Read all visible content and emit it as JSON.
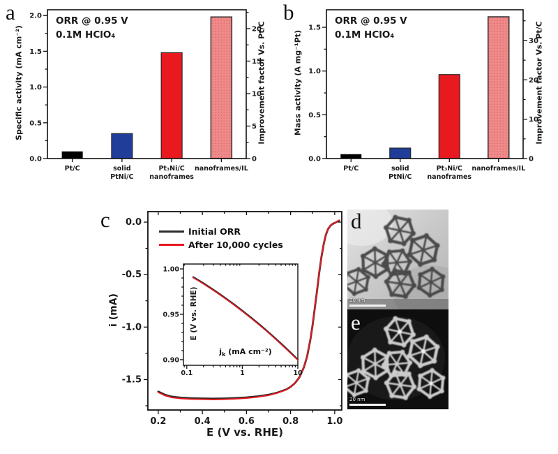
{
  "panels": {
    "a": "a",
    "b": "b",
    "c": "c",
    "d": "d",
    "e": "e"
  },
  "chart_data": [
    {
      "id": "a",
      "type": "bar",
      "title_lines": [
        "ORR @ 0.95 V",
        "0.1M HClO₄"
      ],
      "categories": [
        [
          "Pt/C"
        ],
        [
          "solid",
          "PtNi/C"
        ],
        [
          "Pt₃Ni/C",
          "nanoframes"
        ],
        [
          "nanoframes/IL"
        ]
      ],
      "values": [
        0.1,
        0.35,
        1.48,
        1.98
      ],
      "bar_colors": [
        "#000000",
        "#1f3d99",
        "#e8191f",
        "#ef8a8a"
      ],
      "hatch_last": true,
      "ylabel_left": "Specific activity (mA cm⁻²)",
      "ylabel_right": "Improvement factor Vs. Pt/C",
      "yticks_left": [
        "0.0",
        "0.5",
        "1.0",
        "1.5",
        "2.0"
      ],
      "yticks_right": [
        "0",
        "5",
        "10",
        "15",
        "20"
      ],
      "ylim_left": [
        0,
        2.08
      ],
      "ylim_right": [
        0,
        22.9
      ]
    },
    {
      "id": "b",
      "type": "bar",
      "title_lines": [
        "ORR @ 0.95 V",
        "0.1M HClO₄"
      ],
      "categories": [
        [
          "Pt/C"
        ],
        [
          "solid",
          "PtNi/C"
        ],
        [
          "Pt₃Ni/C",
          "nanoframes"
        ],
        [
          "nanoframes/IL"
        ]
      ],
      "values": [
        0.05,
        0.12,
        0.96,
        1.62
      ],
      "bar_colors": [
        "#000000",
        "#1f3d99",
        "#e8191f",
        "#ef8a8a"
      ],
      "hatch_last": true,
      "ylabel_left": "Mass activity (A mg⁻¹Pt)",
      "ylabel_right": "Improvement factor Vs. Pt/C",
      "yticks_left": [
        "0.0",
        "0.5",
        "1.0",
        "1.5"
      ],
      "yticks_right": [
        "0",
        "10",
        "20",
        "30"
      ],
      "ylim_left": [
        0,
        1.7
      ],
      "ylim_right": [
        0,
        37.8
      ]
    },
    {
      "id": "c",
      "type": "line",
      "xlabel": "E (V vs. RHE)",
      "ylabel": "i (mA)",
      "xticks": [
        "0.2",
        "0.4",
        "0.6",
        "0.8",
        "1.0"
      ],
      "yticks": [
        "0.0",
        "-0.5",
        "-1.0",
        "-1.5"
      ],
      "xlim": [
        0.153,
        1.032
      ],
      "ylim": [
        -1.79,
        0.1
      ],
      "legend_position": "top-left",
      "series": [
        {
          "name": "Initial ORR",
          "color": "#2b2b2b",
          "x": [
            0.2,
            0.23,
            0.26,
            0.3,
            0.35,
            0.4,
            0.45,
            0.5,
            0.55,
            0.6,
            0.65,
            0.7,
            0.74,
            0.78,
            0.8,
            0.82,
            0.84,
            0.86,
            0.875,
            0.89,
            0.9,
            0.91,
            0.92,
            0.93,
            0.94,
            0.95,
            0.96,
            0.97,
            0.98,
            0.99,
            1.0,
            1.02
          ],
          "y": [
            -1.615,
            -1.645,
            -1.662,
            -1.672,
            -1.678,
            -1.68,
            -1.682,
            -1.68,
            -1.676,
            -1.67,
            -1.66,
            -1.645,
            -1.625,
            -1.595,
            -1.57,
            -1.533,
            -1.478,
            -1.385,
            -1.28,
            -1.115,
            -0.975,
            -0.815,
            -0.65,
            -0.48,
            -0.33,
            -0.21,
            -0.12,
            -0.065,
            -0.035,
            -0.018,
            -0.008,
            0.015
          ]
        },
        {
          "name": "After 10,000 cycles",
          "color": "#e8191f",
          "x": [
            0.2,
            0.23,
            0.26,
            0.3,
            0.35,
            0.4,
            0.45,
            0.5,
            0.55,
            0.6,
            0.65,
            0.7,
            0.74,
            0.78,
            0.8,
            0.82,
            0.84,
            0.86,
            0.875,
            0.89,
            0.9,
            0.91,
            0.92,
            0.93,
            0.94,
            0.95,
            0.96,
            0.97,
            0.98,
            0.99,
            1.0,
            1.02
          ],
          "y": [
            -1.622,
            -1.652,
            -1.67,
            -1.68,
            -1.686,
            -1.688,
            -1.69,
            -1.688,
            -1.684,
            -1.677,
            -1.666,
            -1.65,
            -1.628,
            -1.597,
            -1.571,
            -1.534,
            -1.478,
            -1.385,
            -1.278,
            -1.112,
            -0.972,
            -0.812,
            -0.648,
            -0.478,
            -0.328,
            -0.209,
            -0.119,
            -0.064,
            -0.034,
            -0.017,
            -0.007,
            0.018
          ]
        }
      ],
      "inset": {
        "ylabel": "E (V vs. RHE)",
        "xlabel_main": "j",
        "xlabel_sub": "k",
        "xlabel_rest": " (mA cm⁻²)",
        "xscale": "log",
        "yticks": [
          "1.00",
          "0.95",
          "0.90"
        ],
        "xticks": [
          "0.1",
          "1",
          "10"
        ],
        "xlim": [
          0.087,
          10
        ],
        "ylim": [
          0.8938,
          1.0054
        ],
        "series": [
          {
            "name": "Initial ORR",
            "color": "#2b2b2b",
            "points": [
              [
                0.13,
                0.991
              ],
              [
                0.17,
                0.9868
              ],
              [
                0.22,
                0.9825
              ],
              [
                0.3,
                0.9771
              ],
              [
                0.4,
                0.9719
              ],
              [
                0.55,
                0.9659
              ],
              [
                0.75,
                0.9598
              ],
              [
                1.0,
                0.954
              ],
              [
                1.4,
                0.9469
              ],
              [
                1.9,
                0.9403
              ],
              [
                2.6,
                0.9332
              ],
              [
                3.5,
                0.9263
              ],
              [
                4.8,
                0.9187
              ],
              [
                6.5,
                0.9111
              ],
              [
                8.5,
                0.9043
              ],
              [
                10,
                0.9
              ]
            ]
          },
          {
            "name": "After 10,000 cycles",
            "color": "#e8191f",
            "points": [
              [
                0.13,
                0.9903
              ],
              [
                0.17,
                0.9861
              ],
              [
                0.22,
                0.9818
              ],
              [
                0.3,
                0.9764
              ],
              [
                0.4,
                0.9712
              ],
              [
                0.55,
                0.9652
              ],
              [
                0.75,
                0.9591
              ],
              [
                1.0,
                0.9533
              ],
              [
                1.4,
                0.9462
              ],
              [
                1.9,
                0.9396
              ],
              [
                2.6,
                0.9325
              ],
              [
                3.5,
                0.9256
              ],
              [
                4.8,
                0.918
              ],
              [
                6.5,
                0.9104
              ],
              [
                8.5,
                0.9036
              ],
              [
                10,
                0.8994
              ]
            ]
          }
        ]
      }
    }
  ],
  "tem_panels": [
    {
      "id": "d",
      "scale_bar": "20 nm"
    },
    {
      "id": "e",
      "scale_bar": "20 nm"
    }
  ]
}
